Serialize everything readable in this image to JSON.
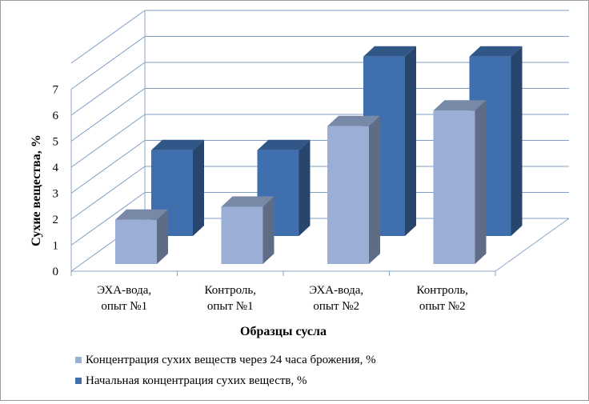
{
  "chart_data": {
    "type": "bar",
    "categories": [
      "ЭХА-вода,\nопыт №1",
      "Контроль,\nопыт №1",
      "ЭХА-вода,\nопыт №2",
      "Контроль,\nопыт №2"
    ],
    "series": [
      {
        "name": "Концентрация сухих веществ через 24 часа брожения, %",
        "values": [
          1.7,
          2.2,
          5.3,
          5.9
        ],
        "color": "#9aaed6"
      },
      {
        "name": "Начальная концентрация сухих веществ, %",
        "values": [
          3.3,
          3.3,
          6.9,
          6.9
        ],
        "color": "#3f6faf"
      }
    ],
    "xlabel": "Образцы сусла",
    "ylabel": "Сухие вещества, %",
    "ylim": [
      0,
      7
    ],
    "yticks": [
      "0",
      "1",
      "2",
      "3",
      "4",
      "5",
      "6",
      "7"
    ],
    "grid": true,
    "legend": "bottom",
    "projection": "3d-clustered"
  }
}
